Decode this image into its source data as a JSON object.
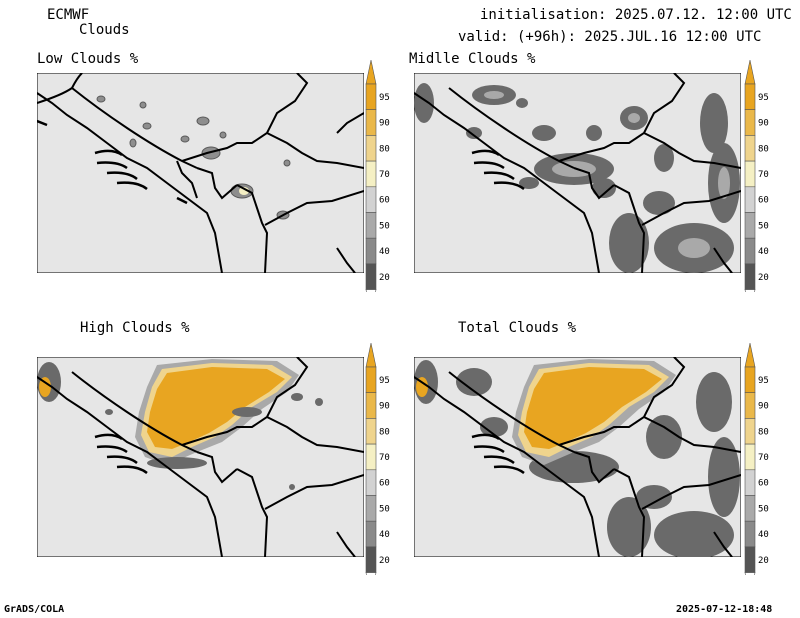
{
  "header": {
    "model": "ECMWF",
    "product": "Clouds",
    "init": "initialisation: 2025.07.12. 12:00 UTC",
    "valid": "valid: (+96h): 2025.JUL.16 12:00 UTC"
  },
  "panels": [
    {
      "title": "Low Clouds %"
    },
    {
      "title": "Midlle Clouds %"
    },
    {
      "title": "High Clouds %"
    },
    {
      "title": "Total Clouds %"
    }
  ],
  "colorbar": {
    "labels": [
      "95",
      "90",
      "80",
      "70",
      "60",
      "50",
      "40",
      "20"
    ],
    "colors": {
      "c95": "#e8a521",
      "c90": "#eab84a",
      "c80": "#efd48d",
      "c70": "#f5f0c4",
      "c60": "#d2d2d2",
      "c50": "#a9a9a9",
      "c40": "#8a8a8a",
      "c20": "#555555"
    }
  },
  "footer": {
    "left": "GrADS/COLA",
    "right": "2025-07-12-18:48"
  },
  "colors": {
    "background": "#e6e6e6",
    "dark": "#5a5a5a",
    "mid": "#8e8e8e",
    "orange": "#e8a521"
  }
}
